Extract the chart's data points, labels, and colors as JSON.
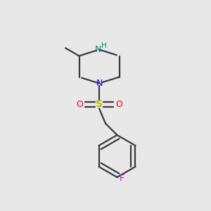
{
  "bg_color": "#e8e8e8",
  "bond_color": "#3a3a3a",
  "N_color": "#0000ee",
  "NH_color": "#008888",
  "S_color": "#bbbb00",
  "O_color": "#ee0000",
  "F_color": "#cc00cc",
  "line_width": 1.6,
  "figsize": [
    3.0,
    3.0
  ],
  "dpi": 100,
  "xlim": [
    0,
    10
  ],
  "ylim": [
    0,
    10
  ]
}
